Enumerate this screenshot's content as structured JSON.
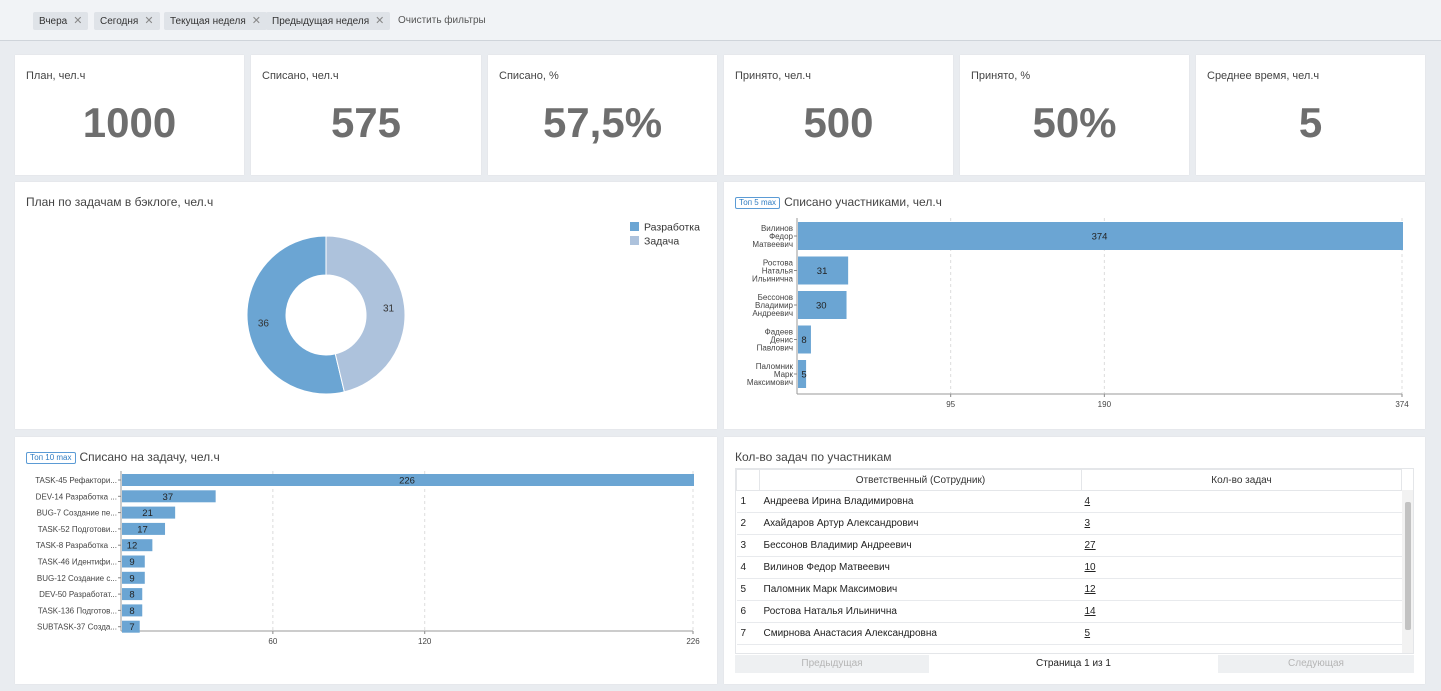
{
  "filters": {
    "chips": [
      "Вчера",
      "Сегодня",
      "Текущая неделя",
      "Предыдущая неделя"
    ],
    "clear_label": "Очистить фильтры",
    "remove_glyph": "✕"
  },
  "kpis": [
    {
      "label": "План, чел.ч",
      "value": "1000"
    },
    {
      "label": "Списано, чел.ч",
      "value": "575"
    },
    {
      "label": "Списано, %",
      "value": "57,5%"
    },
    {
      "label": "Принято, чел.ч",
      "value": "500"
    },
    {
      "label": "Принято, %",
      "value": "50%"
    },
    {
      "label": "Среднее время, чел.ч",
      "value": "5"
    }
  ],
  "donut_panel": {
    "title": "План по задачам в бэклоге, чел.ч",
    "chart_data": {
      "type": "pie",
      "title": "План по задачам в бэклоге, чел.ч",
      "categories": [
        "Разработка",
        "Задача"
      ],
      "values": [
        36,
        31
      ],
      "colors": [
        "#6ba5d3",
        "#adc2dc"
      ],
      "legend": "top-right"
    }
  },
  "participants_panel": {
    "badge": "Топ 5 max",
    "title": "Списано участниками, чел.ч",
    "chart_data": {
      "type": "bar",
      "orientation": "horizontal",
      "title": "Списано участниками, чел.ч",
      "categories": [
        [
          "Вилинов",
          "Федор",
          "Матвеевич"
        ],
        [
          "Ростова",
          "Наталья",
          "Ильинична"
        ],
        [
          "Бессонов",
          "Владимир",
          "Андреевич"
        ],
        [
          "Фадеев",
          "Денис",
          "Павлович"
        ],
        [
          "Паломник",
          "Марк",
          "Максимович"
        ]
      ],
      "values": [
        374,
        31,
        30,
        8,
        5
      ],
      "xlim": [
        0,
        374
      ],
      "ticks": [
        95,
        190,
        374
      ],
      "color": "#6ba5d3"
    }
  },
  "tasks_panel": {
    "badge": "Топ 10 max",
    "title": "Списано на задачу, чел.ч",
    "chart_data": {
      "type": "bar",
      "orientation": "horizontal",
      "title": "Списано на задачу, чел.ч",
      "categories": [
        "TASK-45 Рефактори...",
        "DEV-14 Разработка ...",
        "BUG-7 Создание пе...",
        "TASK-52 Подготови...",
        "TASK-8 Разработка ...",
        "TASK-46 Идентифи...",
        "BUG-12 Создание с...",
        "DEV-50 Разработат...",
        "TASK-136 Подготов...",
        "SUBTASK-37 Созда..."
      ],
      "values": [
        226,
        37,
        21,
        17,
        12,
        9,
        9,
        8,
        8,
        7
      ],
      "xlim": [
        0,
        226
      ],
      "ticks": [
        60,
        120,
        226
      ],
      "color": "#6ba5d3"
    }
  },
  "table_panel": {
    "title": "Кол-во задач по участникам",
    "columns": [
      "Ответственный (Сотрудник)",
      "Кол-во задач"
    ],
    "rows": [
      {
        "n": "1",
        "name": "Андреева Ирина Владимировна",
        "count": "4"
      },
      {
        "n": "2",
        "name": "Ахайдаров Артур Александрович",
        "count": "3"
      },
      {
        "n": "3",
        "name": "Бессонов Владимир Андреевич",
        "count": "27"
      },
      {
        "n": "4",
        "name": "Вилинов Федор Матвеевич",
        "count": "10"
      },
      {
        "n": "5",
        "name": "Паломник Марк Максимович",
        "count": "12"
      },
      {
        "n": "6",
        "name": "Ростова Наталья Ильинична",
        "count": "14"
      },
      {
        "n": "7",
        "name": "Смирнова Анастасия Александровна",
        "count": "5"
      }
    ],
    "pager": {
      "prev": "Предыдущая",
      "page": "Страница 1 из 1",
      "next": "Следующая"
    }
  }
}
